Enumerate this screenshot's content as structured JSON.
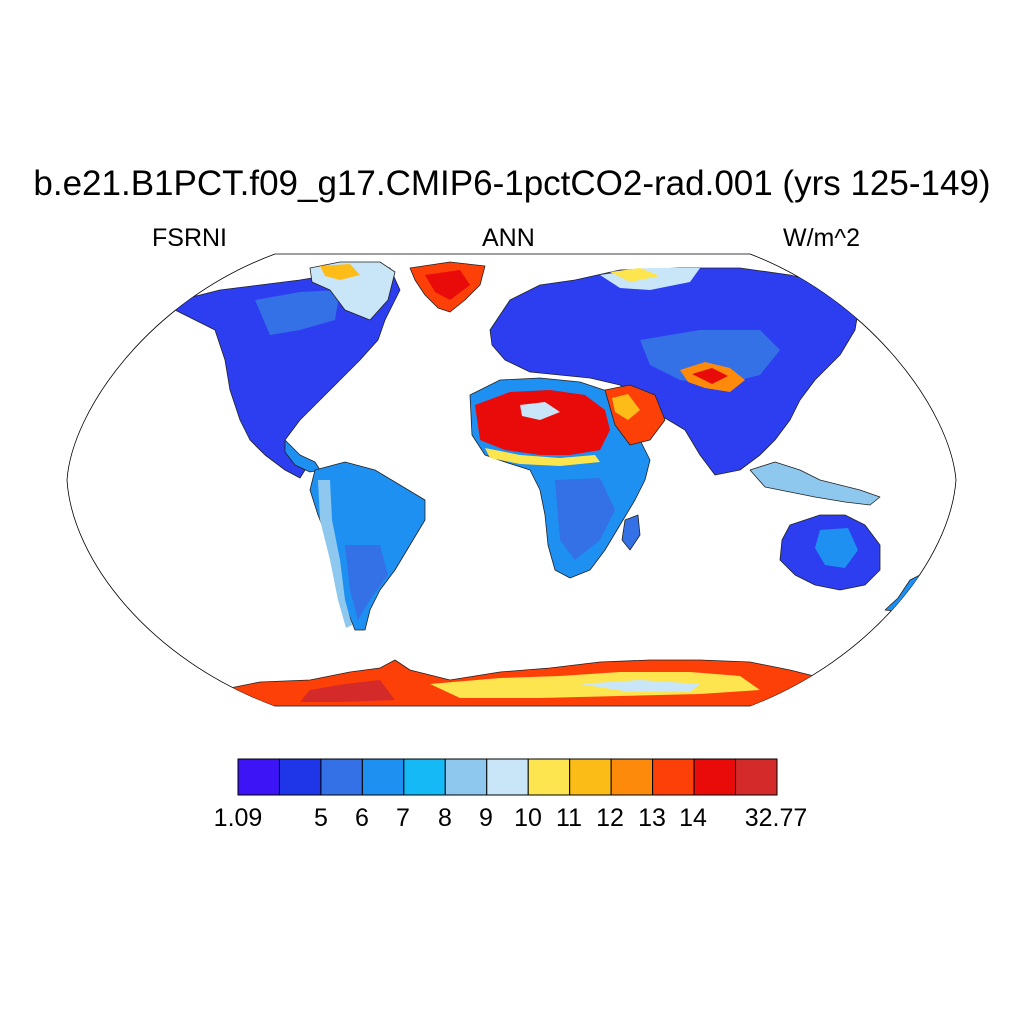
{
  "figure": {
    "title": "b.e21.B1PCT.f09_g17.CMIP6-1pctCO2-rad.001 (yrs 125-149)",
    "left_label": "FSRNI",
    "center_label": "ANN",
    "right_label": "W/m^2"
  },
  "map": {
    "projection": "robinson",
    "field": "FSRNI",
    "season": "ANN",
    "regions": [
      {
        "name": "North America",
        "level": 1
      },
      {
        "name": "Greenland",
        "level": 12
      },
      {
        "name": "South America",
        "level": 3
      },
      {
        "name": "Europe",
        "level": 1
      },
      {
        "name": "Asia",
        "level": 1
      },
      {
        "name": "Sahara",
        "level": 11
      },
      {
        "name": "Arabia",
        "level": 10
      },
      {
        "name": "Sub-Saharan Africa",
        "level": 3
      },
      {
        "name": "Australia",
        "level": 1
      },
      {
        "name": "Antarctica",
        "level": 10
      }
    ]
  },
  "colorbar": {
    "labels": [
      "1.09",
      "5",
      "6",
      "7",
      "8",
      "9",
      "10",
      "11",
      "12",
      "13",
      "14",
      "32.77"
    ],
    "colors": [
      "#3d14f5",
      "#1f35e8",
      "#3470e6",
      "#1e90f2",
      "#14b9f5",
      "#8ec8ee",
      "#c9e6f8",
      "#fde54f",
      "#fcbc17",
      "#fd8a0a",
      "#fd3f08",
      "#e90a0a",
      "#d42a2a"
    ]
  }
}
